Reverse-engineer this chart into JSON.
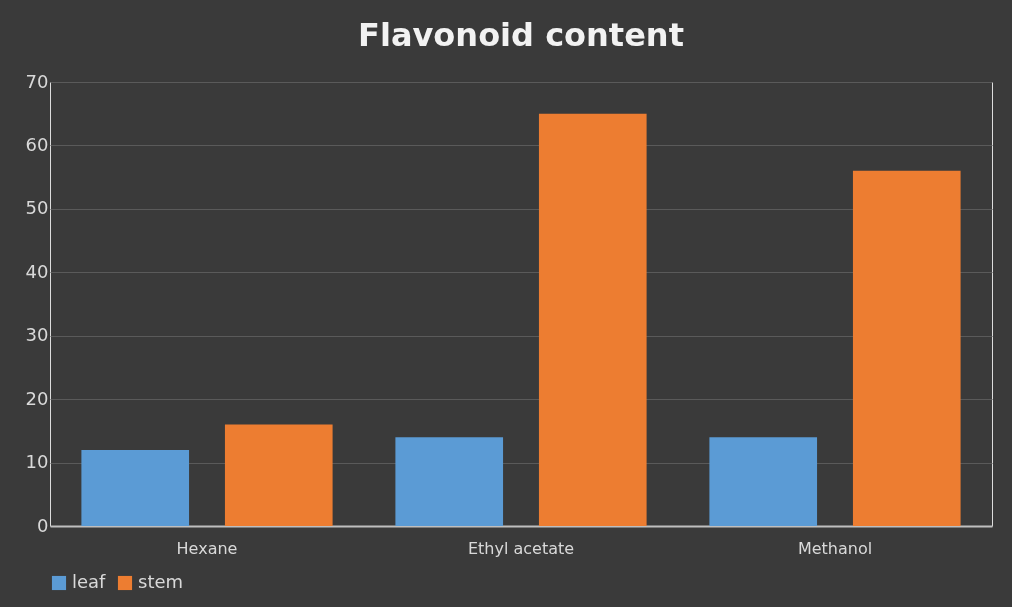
{
  "chart_data": {
    "type": "bar",
    "title": "Flavonoid content",
    "categories": [
      "Hexane",
      "Ethyl acetate",
      "Methanol"
    ],
    "series": [
      {
        "name": "leaf",
        "color": "#5b9bd5",
        "values": [
          12,
          14,
          14
        ]
      },
      {
        "name": "stem",
        "color": "#ed7d31",
        "values": [
          16,
          65,
          56
        ]
      }
    ],
    "ylim": [
      0,
      70
    ],
    "yticks": [
      0,
      10,
      20,
      30,
      40,
      50,
      60,
      70
    ],
    "grid": "y",
    "legend": "bottom"
  }
}
